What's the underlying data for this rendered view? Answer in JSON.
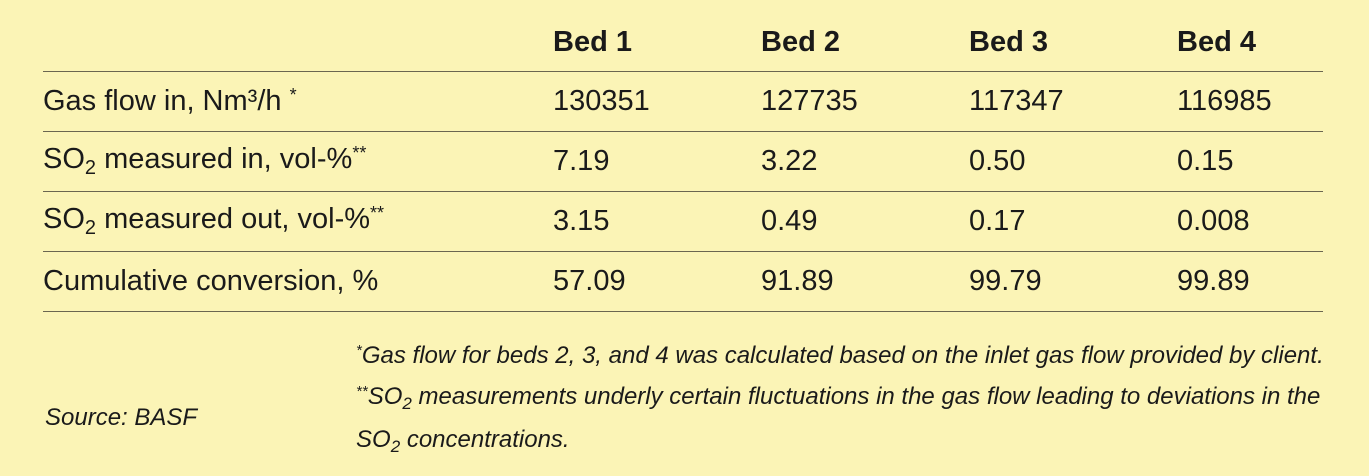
{
  "table": {
    "headers": [
      "",
      "Bed 1",
      "Bed 2",
      "Bed 3",
      "Bed 4"
    ],
    "rows": [
      {
        "label_main": "Gas flow in, Nm³/h",
        "label_sup": "*",
        "values": [
          "130351",
          "127735",
          "117347",
          "116985"
        ]
      },
      {
        "label_pre": "SO",
        "label_sub": "2",
        "label_post": " measured in, vol-%",
        "label_sup": "**",
        "values": [
          "7.19",
          "3.22",
          "0.50",
          "0.15"
        ]
      },
      {
        "label_pre": "SO",
        "label_sub": "2",
        "label_post": " measured out, vol-%",
        "label_sup": "**",
        "values": [
          "3.15",
          "0.49",
          "0.17",
          "0.008"
        ]
      },
      {
        "label_main": "Cumulative conversion, %",
        "values": [
          "57.09",
          "91.89",
          "99.79",
          "99.89"
        ]
      }
    ]
  },
  "source": "Source: BASF",
  "footnote": {
    "star1": "*",
    "part1": "Gas flow for beds 2, 3, and 4 was calculated based on the inlet gas flow provided by client. ",
    "star2": "**",
    "part2_pre": "SO",
    "part2_sub": "2",
    "part2_post": " measurements underly certain fluctuations in the gas flow leading to deviations in the SO",
    "part3_sub": "2",
    "part3_post": " concentrations."
  }
}
